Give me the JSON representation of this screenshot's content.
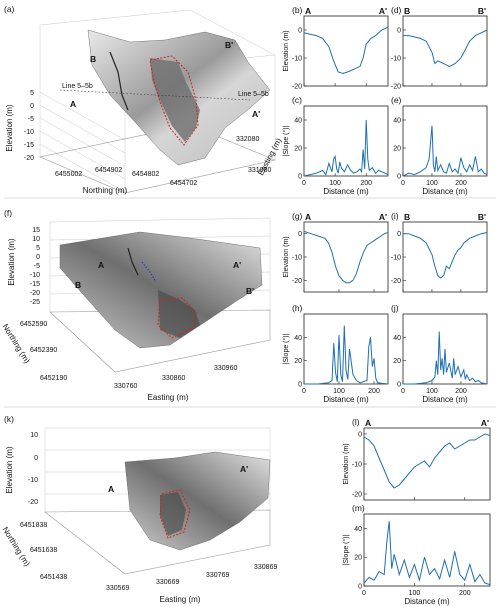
{
  "panels3d": [
    {
      "label": "(a)",
      "zlabel": "Elevation (m)",
      "xlabel": "Northing (m)",
      "ylabel": "Easting (m)",
      "zticks": [
        "5",
        "0",
        "-5",
        "-10",
        "-15",
        "-20"
      ],
      "xticks": [
        "6455002",
        "6454902",
        "6454802",
        "6454702"
      ],
      "yticks": [
        "332080",
        "331880"
      ],
      "points": [
        "A",
        "A'",
        "B",
        "B'"
      ],
      "line_labels": [
        "Line 5–5b",
        "Line 5–5b"
      ]
    },
    {
      "label": "(f)",
      "zlabel": "Elevation (m)",
      "xlabel": "Easting (m)",
      "ylabel": "Northing (m)",
      "zticks": [
        "15",
        "10",
        "5",
        "0",
        "-5",
        "-10",
        "-15",
        "-20",
        "-25"
      ],
      "xticks": [
        "330760",
        "330860",
        "330960"
      ],
      "yticks": [
        "6452590",
        "6452390",
        "6452190"
      ],
      "points": [
        "A",
        "A'",
        "B",
        "B'"
      ]
    },
    {
      "label": "(k)",
      "zlabel": "Elevation (m)",
      "xlabel": "Easting (m)",
      "ylabel": "Northing (m)",
      "zticks": [
        "10",
        "0",
        "-10",
        "-20"
      ],
      "xticks": [
        "330569",
        "330669",
        "330769",
        "330869"
      ],
      "yticks": [
        "6451838",
        "6451638",
        "6451438"
      ],
      "points": [
        "A",
        "A'"
      ]
    }
  ],
  "chart_data": [
    {
      "panel": "(b)",
      "type": "line",
      "start_label": "A",
      "end_label": "A'",
      "ylabel": "Elevation (m)",
      "xlabel": "",
      "xlim": [
        0,
        270
      ],
      "ylim": [
        -20,
        5
      ],
      "yticks": [
        -20,
        -10,
        0
      ],
      "xticks": [
        0,
        100,
        200
      ],
      "show_xticklabels": false,
      "x": [
        0,
        20,
        40,
        60,
        80,
        95,
        110,
        125,
        140,
        160,
        180,
        190,
        200,
        215,
        230,
        250,
        270
      ],
      "y": [
        -1,
        -1.5,
        -2,
        -3,
        -6,
        -11,
        -15,
        -15.5,
        -15,
        -14,
        -13,
        -10,
        -5,
        -3,
        -2,
        0,
        1
      ]
    },
    {
      "panel": "(c)",
      "type": "line",
      "ylabel": "|Slope (°)|",
      "xlabel": "Distance (m)",
      "xlim": [
        0,
        270
      ],
      "ylim": [
        0,
        50
      ],
      "yticks": [
        0,
        20,
        40
      ],
      "xticks": [
        0,
        100,
        200
      ],
      "x": [
        0,
        20,
        40,
        60,
        70,
        80,
        90,
        95,
        100,
        105,
        110,
        115,
        120,
        130,
        140,
        150,
        160,
        170,
        180,
        185,
        190,
        195,
        200,
        205,
        210,
        220,
        230,
        240,
        250,
        260,
        270
      ],
      "y": [
        0,
        1,
        2,
        4,
        1,
        9,
        3,
        12,
        14,
        5,
        2,
        10,
        6,
        3,
        8,
        4,
        2,
        3,
        5,
        3,
        19,
        5,
        40,
        12,
        4,
        6,
        2,
        4,
        3,
        2,
        1
      ]
    },
    {
      "panel": "(d)",
      "type": "line",
      "start_label": "B",
      "end_label": "B'",
      "ylabel": "",
      "xlabel": "",
      "xlim": [
        0,
        290
      ],
      "ylim": [
        -20,
        5
      ],
      "yticks": [
        -20,
        -10,
        0
      ],
      "xticks": [
        0,
        100,
        200
      ],
      "show_xticklabels": false,
      "x": [
        0,
        20,
        40,
        60,
        80,
        100,
        110,
        120,
        140,
        160,
        180,
        200,
        215,
        230,
        250,
        270,
        290
      ],
      "y": [
        -2,
        -2,
        -2.5,
        -3,
        -4,
        -8,
        -12,
        -11,
        -12,
        -13,
        -12,
        -10,
        -7,
        -4,
        -2,
        -1,
        0
      ]
    },
    {
      "panel": "(e)",
      "type": "line",
      "ylabel": "",
      "xlabel": "Distance (m)",
      "xlim": [
        0,
        290
      ],
      "ylim": [
        0,
        50
      ],
      "yticks": [
        0,
        20,
        40
      ],
      "xticks": [
        0,
        100,
        200
      ],
      "x": [
        0,
        20,
        40,
        60,
        80,
        90,
        100,
        105,
        110,
        115,
        120,
        130,
        140,
        150,
        160,
        170,
        180,
        190,
        200,
        210,
        220,
        230,
        240,
        250,
        260,
        270,
        280,
        290
      ],
      "y": [
        0,
        2,
        1,
        3,
        6,
        12,
        36,
        8,
        3,
        14,
        4,
        8,
        3,
        2,
        9,
        3,
        5,
        2,
        13,
        6,
        3,
        8,
        4,
        14,
        3,
        5,
        2,
        1
      ]
    },
    {
      "panel": "(g)",
      "type": "line",
      "start_label": "A",
      "end_label": "A'",
      "ylabel": "Elevation (m)",
      "xlabel": "",
      "xlim": [
        0,
        240
      ],
      "ylim": [
        -25,
        5
      ],
      "yticks": [
        -20,
        -10,
        0
      ],
      "xticks": [
        0,
        100,
        200
      ],
      "show_xticklabels": false,
      "x": [
        0,
        20,
        40,
        60,
        70,
        80,
        90,
        100,
        110,
        120,
        130,
        140,
        150,
        160,
        170,
        180,
        190,
        200,
        210,
        220,
        230,
        240
      ],
      "y": [
        1,
        0,
        -1,
        -2,
        -4,
        -8,
        -14,
        -18,
        -20,
        -21,
        -21,
        -20,
        -17,
        -12,
        -8,
        -5,
        -4,
        -3,
        -2,
        -1,
        0,
        0.5
      ]
    },
    {
      "panel": "(h)",
      "type": "line",
      "ylabel": "|Slope (°)|",
      "xlabel": "Distance (m)",
      "xlim": [
        0,
        240
      ],
      "ylim": [
        0,
        60
      ],
      "yticks": [
        0,
        20,
        40
      ],
      "xticks": [
        0,
        100,
        200
      ],
      "x": [
        0,
        40,
        70,
        80,
        85,
        90,
        95,
        100,
        105,
        110,
        115,
        120,
        125,
        130,
        140,
        150,
        160,
        170,
        180,
        185,
        190,
        195,
        200,
        205,
        210,
        240
      ],
      "y": [
        0,
        0,
        1,
        3,
        35,
        10,
        2,
        42,
        8,
        2,
        50,
        12,
        4,
        30,
        8,
        3,
        1,
        2,
        3,
        32,
        40,
        15,
        22,
        5,
        1,
        0
      ]
    },
    {
      "panel": "(i)",
      "type": "line",
      "start_label": "B",
      "end_label": "B'",
      "ylabel": "",
      "xlabel": "",
      "xlim": [
        0,
        290
      ],
      "ylim": [
        -25,
        5
      ],
      "yticks": [
        -20,
        -10,
        0
      ],
      "xticks": [
        0,
        100,
        200
      ],
      "show_xticklabels": false,
      "x": [
        0,
        20,
        40,
        60,
        80,
        100,
        110,
        120,
        130,
        140,
        150,
        160,
        170,
        180,
        190,
        200,
        210,
        220,
        230,
        250,
        270,
        290
      ],
      "y": [
        0,
        0,
        -1,
        -2,
        -4,
        -9,
        -14,
        -18,
        -19,
        -18,
        -14,
        -15,
        -12,
        -9,
        -7,
        -6,
        -4,
        -3,
        -2,
        -1,
        0,
        0.5
      ]
    },
    {
      "panel": "(j)",
      "type": "line",
      "ylabel": "",
      "xlabel": "Distance (m)",
      "xlim": [
        0,
        290
      ],
      "ylim": [
        0,
        60
      ],
      "yticks": [
        0,
        20,
        40
      ],
      "xticks": [
        0,
        100,
        200
      ],
      "x": [
        0,
        40,
        80,
        100,
        110,
        115,
        120,
        125,
        130,
        135,
        140,
        145,
        150,
        160,
        170,
        175,
        180,
        190,
        200,
        210,
        215,
        220,
        230,
        240,
        250,
        260,
        270,
        290
      ],
      "y": [
        0,
        0,
        1,
        3,
        6,
        20,
        8,
        45,
        12,
        22,
        8,
        30,
        10,
        18,
        5,
        22,
        8,
        15,
        6,
        12,
        4,
        8,
        3,
        5,
        2,
        3,
        1,
        0
      ]
    },
    {
      "panel": "(l)",
      "type": "line",
      "start_label": "A",
      "end_label": "A'",
      "ylabel": "Elevation (m)",
      "xlabel": "",
      "xlim": [
        0,
        250
      ],
      "ylim": [
        -22,
        2
      ],
      "yticks": [
        -20,
        -10,
        0
      ],
      "xticks": [
        0,
        100,
        200
      ],
      "show_xticklabels": false,
      "x": [
        0,
        10,
        20,
        30,
        40,
        50,
        60,
        70,
        80,
        90,
        100,
        110,
        120,
        130,
        140,
        150,
        160,
        170,
        180,
        190,
        200,
        210,
        220,
        230,
        240,
        250
      ],
      "y": [
        -1,
        -2,
        -4,
        -8,
        -12,
        -16,
        -18,
        -17,
        -15,
        -13,
        -11,
        -10,
        -9,
        -11,
        -8,
        -6,
        -4,
        -3,
        -5,
        -4,
        -3,
        -2,
        -2,
        -1,
        0,
        -0.5
      ]
    },
    {
      "panel": "(m)",
      "type": "line",
      "ylabel": "|Slope (°)|",
      "xlabel": "Distance (m)",
      "xlim": [
        0,
        250
      ],
      "ylim": [
        0,
        50
      ],
      "yticks": [
        0,
        20,
        40
      ],
      "xticks": [
        0,
        100,
        200
      ],
      "x": [
        0,
        10,
        20,
        30,
        40,
        45,
        50,
        55,
        60,
        70,
        80,
        90,
        100,
        110,
        120,
        130,
        140,
        150,
        160,
        170,
        180,
        190,
        200,
        210,
        220,
        230,
        240,
        250
      ],
      "y": [
        2,
        6,
        4,
        10,
        8,
        30,
        45,
        12,
        22,
        8,
        18,
        6,
        15,
        4,
        20,
        8,
        12,
        5,
        18,
        6,
        24,
        8,
        4,
        15,
        3,
        8,
        2,
        1
      ]
    }
  ]
}
